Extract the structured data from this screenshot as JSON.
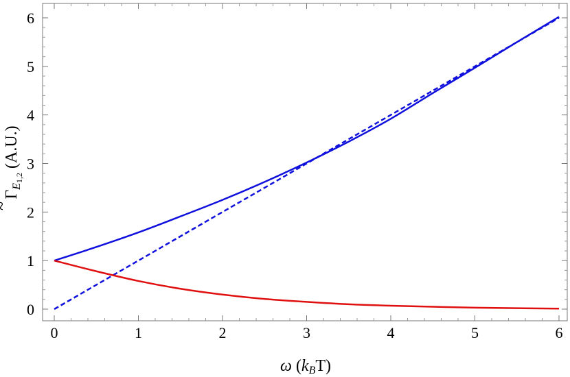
{
  "chart_data": {
    "type": "line",
    "title": "",
    "xlabel": {
      "symbol": "ω",
      "open": " (",
      "k": "k",
      "sub": "B",
      "rest": "T)"
    },
    "ylabel": {
      "symbol": "Γ",
      "tilde": "~",
      "sub": "E",
      "subsub": "1,2",
      "rest": " (A.U.)"
    },
    "xlim": [
      0,
      6
    ],
    "ylim": [
      -0.1,
      6.3
    ],
    "xticks": [
      0,
      1,
      2,
      3,
      4,
      5,
      6
    ],
    "yticks": [
      0,
      1,
      2,
      3,
      4,
      5,
      6
    ],
    "grid": false,
    "colors": {
      "blue": "#1010dd",
      "red": "#e01010"
    },
    "series": [
      {
        "color": "blue",
        "style": "solid",
        "x": [
          0,
          0.5,
          1,
          1.5,
          2,
          2.5,
          3,
          3.5,
          4,
          4.5,
          5,
          5.5,
          6
        ],
        "y": [
          1.0,
          1.28,
          1.58,
          1.91,
          2.25,
          2.62,
          3.02,
          3.45,
          3.92,
          4.45,
          4.97,
          5.5,
          6.02
        ]
      },
      {
        "color": "blue",
        "style": "dashed",
        "x": [
          0,
          6
        ],
        "y": [
          0,
          6
        ]
      },
      {
        "color": "red",
        "style": "solid",
        "x": [
          0,
          0.5,
          1,
          1.5,
          2,
          2.5,
          3,
          3.5,
          4,
          4.5,
          5,
          5.5,
          6
        ],
        "y": [
          1.0,
          0.78,
          0.58,
          0.42,
          0.3,
          0.21,
          0.15,
          0.1,
          0.07,
          0.05,
          0.03,
          0.02,
          0.01
        ]
      }
    ]
  }
}
